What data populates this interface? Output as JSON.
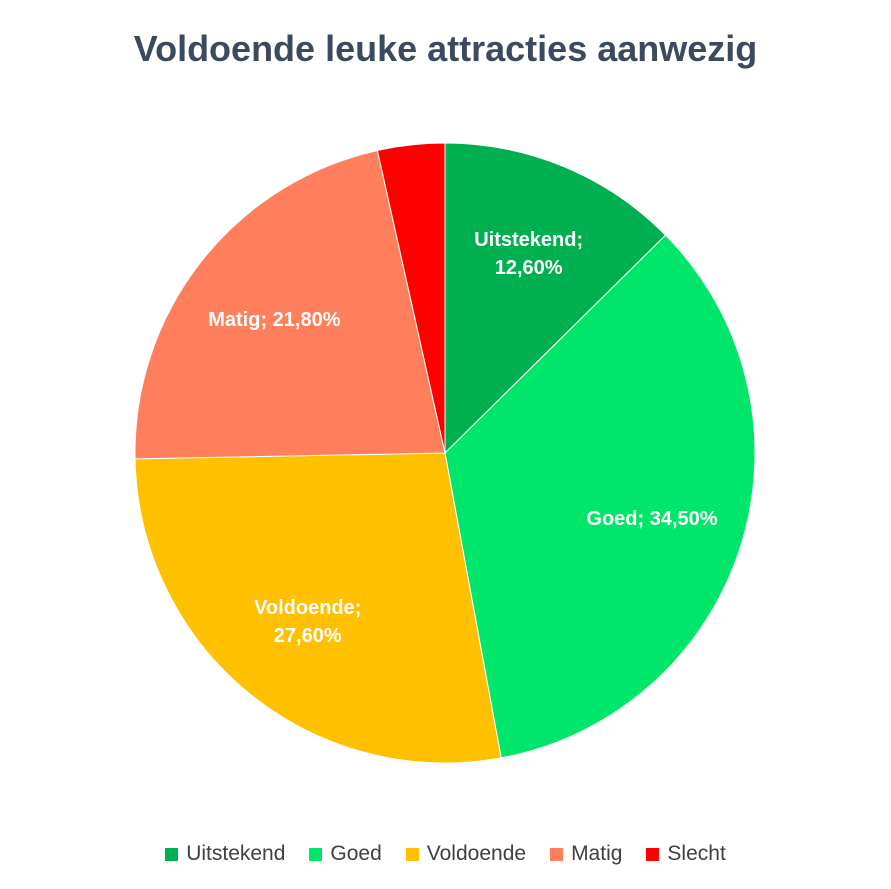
{
  "chart_data": {
    "type": "pie",
    "title": "Voldoende leuke attracties aanwezig",
    "slices": [
      {
        "name": "Uitstekend",
        "value": 12.6,
        "label_lines": [
          "Uitstekend;",
          "12,60%"
        ],
        "color": "#00b050"
      },
      {
        "name": "Goed",
        "value": 34.5,
        "label_lines": [
          "Goed; 34,50%"
        ],
        "color": "#00e66a"
      },
      {
        "name": "Voldoende",
        "value": 27.6,
        "label_lines": [
          "Voldoende;",
          "27,60%"
        ],
        "color": "#ffc000"
      },
      {
        "name": "Matig",
        "value": 21.8,
        "label_lines": [
          "Matig; 21,80%"
        ],
        "color": "#ff7f5c"
      },
      {
        "name": "Slecht",
        "value": 3.5,
        "label_lines": [],
        "color": "#ff0000"
      }
    ],
    "legend_position": "bottom",
    "start_angle": "12 o'clock",
    "direction": "clockwise"
  }
}
